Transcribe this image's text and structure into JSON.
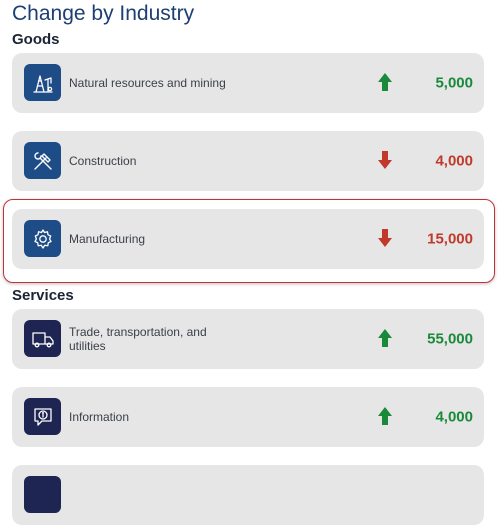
{
  "page_title": "Change by Industry",
  "sections": {
    "goods": {
      "title": "Goods"
    },
    "services": {
      "title": "Services"
    }
  },
  "rows": [
    {
      "label": "Natural resources and mining",
      "value": "5,000",
      "direction": "up",
      "icon": "oil-rig-icon",
      "group": "goods"
    },
    {
      "label": "Construction",
      "value": "4,000",
      "direction": "down",
      "icon": "tools-icon",
      "group": "goods"
    },
    {
      "label": "Manufacturing",
      "value": "15,000",
      "direction": "down",
      "icon": "gear-icon",
      "group": "goods",
      "selected": true
    },
    {
      "label": "Trade, transportation, and utilities",
      "value": "55,000",
      "direction": "up",
      "icon": "truck-icon",
      "group": "services"
    },
    {
      "label": "Information",
      "value": "4,000",
      "direction": "up",
      "icon": "info-bubble-icon",
      "group": "services"
    }
  ],
  "colors": {
    "up": "#1a8a3a",
    "down": "#c0392b",
    "title": "#1d3f73",
    "goods_tile": "#1e4c86",
    "services_tile": "#1f2552",
    "highlight_border": "#c0333a"
  }
}
